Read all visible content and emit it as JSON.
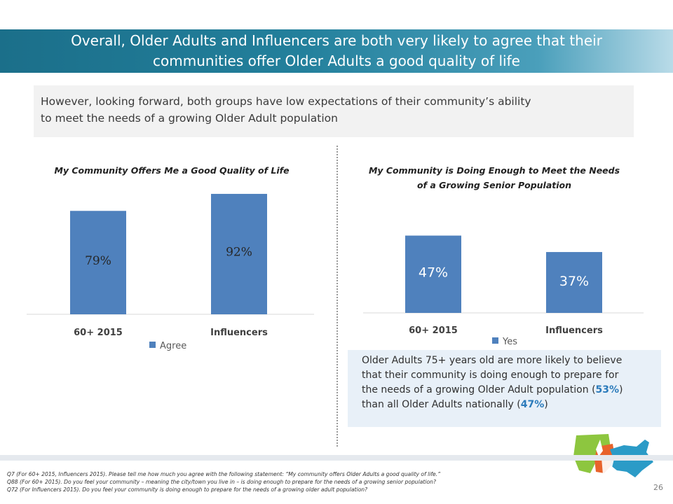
{
  "slide": {
    "title_line1": "Overall, Older Adults and Influencers are both very likely to agree that their",
    "title_line2": "communities offer Older Adults a good quality of life",
    "subtitle_line1": "However, looking forward, both groups have low expectations of their community’s ability",
    "subtitle_line2": "to meet the needs of a growing Older Adult population",
    "page_number": "26"
  },
  "chart_data": [
    {
      "type": "bar",
      "title": "My Community Offers Me a Good Quality of Life",
      "categories": [
        "60+ 2015",
        "Influencers"
      ],
      "series": [
        {
          "name": "Agree",
          "values": [
            79,
            92
          ]
        }
      ],
      "value_labels": [
        "79%",
        "92%"
      ],
      "ylim": [
        0,
        100
      ],
      "color": "#4f81bd",
      "legend": "bottom"
    },
    {
      "type": "bar",
      "title_line1": "My Community is Doing Enough to Meet the Needs",
      "title_line2": "of a Growing Senior Population",
      "categories": [
        "60+ 2015",
        "Influencers"
      ],
      "series": [
        {
          "name": "Yes",
          "values": [
            47,
            37
          ]
        }
      ],
      "value_labels": [
        "47%",
        "37%"
      ],
      "ylim": [
        0,
        100
      ],
      "color": "#4f81bd",
      "legend": "bottom"
    }
  ],
  "callout": {
    "line1": "Older Adults 75+ years old are more likely to believe",
    "line2": "that their community is doing enough to prepare for",
    "line3_pre": "the needs of a growing Older Adult population (",
    "line3_value": "53%",
    "line3_post": ")",
    "line4_pre": "than all Older Adults nationally (",
    "line4_value": "47%",
    "line4_post": ")"
  },
  "footnotes": [
    "Q7 (For 60+ 2015, Influencers 2015). Please tell me how much you agree with the following statement: “My community offers Older Adults a good quality of life.”",
    "Q88 (For 60+ 2015). Do you feel your community – meaning the city/town you live in – is doing enough to prepare for the needs of a growing senior population?",
    "Q72 (For Influencers 2015). Do you feel your community is doing enough to prepare for the needs of a growing older adult population?"
  ],
  "colors": {
    "bar": "#4f81bd",
    "title_bar": "#1b6f8a",
    "highlight": "#2b7bbb",
    "logo_green": "#8dc63f",
    "logo_orange": "#e8632b",
    "logo_blue": "#2b9bc7"
  },
  "icons": [
    "us-map-logo-icon"
  ]
}
